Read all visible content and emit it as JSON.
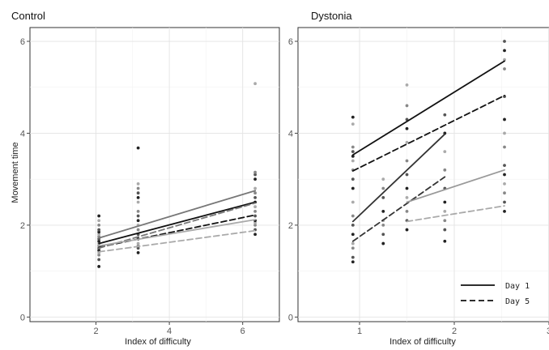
{
  "chart_data": [
    {
      "type": "scatter",
      "title": "Control",
      "xlabel": "Index of difficulty",
      "ylabel": "Movement time",
      "xlim": [
        0.2,
        7.0
      ],
      "ylim": [
        -0.1,
        6.3
      ],
      "xticks": [
        2,
        4,
        6
      ],
      "yticks": [
        0,
        2,
        4,
        6
      ],
      "grid": true,
      "lines": [
        {
          "day": "Day 1",
          "color": "#111111",
          "dash": false,
          "x": [
            2.08,
            6.34
          ],
          "y": [
            1.6,
            2.5
          ]
        },
        {
          "day": "Day 5",
          "color": "#111111",
          "dash": true,
          "x": [
            2.08,
            6.34
          ],
          "y": [
            1.52,
            2.22
          ]
        },
        {
          "day": "Day 1",
          "color": "#777777",
          "dash": false,
          "x": [
            2.08,
            6.34
          ],
          "y": [
            1.72,
            2.75
          ]
        },
        {
          "day": "Day 5",
          "color": "#777777",
          "dash": true,
          "x": [
            2.08,
            6.34
          ],
          "y": [
            1.5,
            2.48
          ]
        },
        {
          "day": "Day 1",
          "color": "#aaaaaa",
          "dash": false,
          "x": [
            2.08,
            6.34
          ],
          "y": [
            1.55,
            2.12
          ]
        },
        {
          "day": "Day 5",
          "color": "#aaaaaa",
          "dash": true,
          "x": [
            2.08,
            6.34
          ],
          "y": [
            1.42,
            1.88
          ]
        }
      ],
      "points": [
        {
          "x": 2.08,
          "y": [
            1.1,
            1.25,
            1.35,
            1.4,
            1.45,
            1.5,
            1.55,
            1.6,
            1.65,
            1.7,
            1.75,
            1.8,
            1.85,
            1.9,
            2.0,
            2.1,
            2.2
          ]
        },
        {
          "x": 3.15,
          "y": [
            1.4,
            1.5,
            1.55,
            1.6,
            1.7,
            1.8,
            1.9,
            2.0,
            2.1,
            2.2,
            2.3,
            2.5,
            2.6,
            2.7,
            2.8,
            2.9,
            3.68
          ]
        },
        {
          "x": 6.34,
          "y": [
            1.8,
            1.9,
            2.0,
            2.05,
            2.1,
            2.2,
            2.3,
            2.4,
            2.5,
            2.6,
            2.7,
            2.8,
            3.0,
            3.1,
            3.15,
            5.08
          ]
        }
      ]
    },
    {
      "type": "scatter",
      "title": "Dystonia",
      "xlabel": "Index of difficulty",
      "xlim": [
        0.35,
        3.0
      ],
      "ylim": [
        -0.1,
        6.3
      ],
      "xticks": [
        1,
        2,
        3
      ],
      "yticks": [
        0,
        2,
        4,
        6
      ],
      "grid": true,
      "lines": [
        {
          "day": "Day 1",
          "color": "#111111",
          "dash": false,
          "x": [
            0.93,
            2.53
          ],
          "y": [
            3.53,
            5.57
          ]
        },
        {
          "day": "Day 5",
          "color": "#111111",
          "dash": true,
          "x": [
            0.93,
            2.53
          ],
          "y": [
            3.18,
            4.82
          ]
        },
        {
          "day": "Day 1",
          "color": "#333333",
          "dash": false,
          "x": [
            0.93,
            1.9
          ],
          "y": [
            2.08,
            3.98
          ]
        },
        {
          "day": "Day 5",
          "color": "#333333",
          "dash": true,
          "x": [
            0.93,
            1.9
          ],
          "y": [
            1.65,
            3.05
          ]
        },
        {
          "day": "Day 1",
          "color": "#999999",
          "dash": false,
          "x": [
            1.5,
            2.53
          ],
          "y": [
            2.5,
            3.2
          ]
        },
        {
          "day": "Day 5",
          "color": "#aaaaaa",
          "dash": true,
          "x": [
            1.5,
            2.53
          ],
          "y": [
            2.08,
            2.42
          ]
        }
      ],
      "points": [
        {
          "x": 0.93,
          "y": [
            1.2,
            1.3,
            1.5,
            1.6,
            1.8,
            2.0,
            2.2,
            2.5,
            2.8,
            3.0,
            3.2,
            3.4,
            3.5,
            3.6,
            3.7,
            4.2,
            4.35
          ]
        },
        {
          "x": 1.25,
          "y": [
            1.6,
            1.8,
            2.0,
            2.1,
            2.3,
            2.6,
            2.8,
            3.0
          ]
        },
        {
          "x": 1.5,
          "y": [
            1.9,
            2.1,
            2.3,
            2.6,
            2.8,
            3.1,
            3.4,
            3.8,
            4.1,
            4.3,
            4.6,
            5.05
          ]
        },
        {
          "x": 1.9,
          "y": [
            1.65,
            1.9,
            2.1,
            2.3,
            2.5,
            2.8,
            3.2,
            3.6,
            4.0,
            4.4
          ]
        },
        {
          "x": 2.53,
          "y": [
            2.3,
            2.5,
            2.7,
            2.9,
            3.1,
            3.3,
            3.7,
            4.0,
            4.3,
            4.8,
            5.4,
            5.6,
            5.8,
            6.0
          ]
        }
      ],
      "legend": {
        "placement": "bottom-right",
        "entries": [
          {
            "label": "Day 1",
            "dash": false
          },
          {
            "label": "Day 5",
            "dash": true
          }
        ]
      }
    }
  ]
}
